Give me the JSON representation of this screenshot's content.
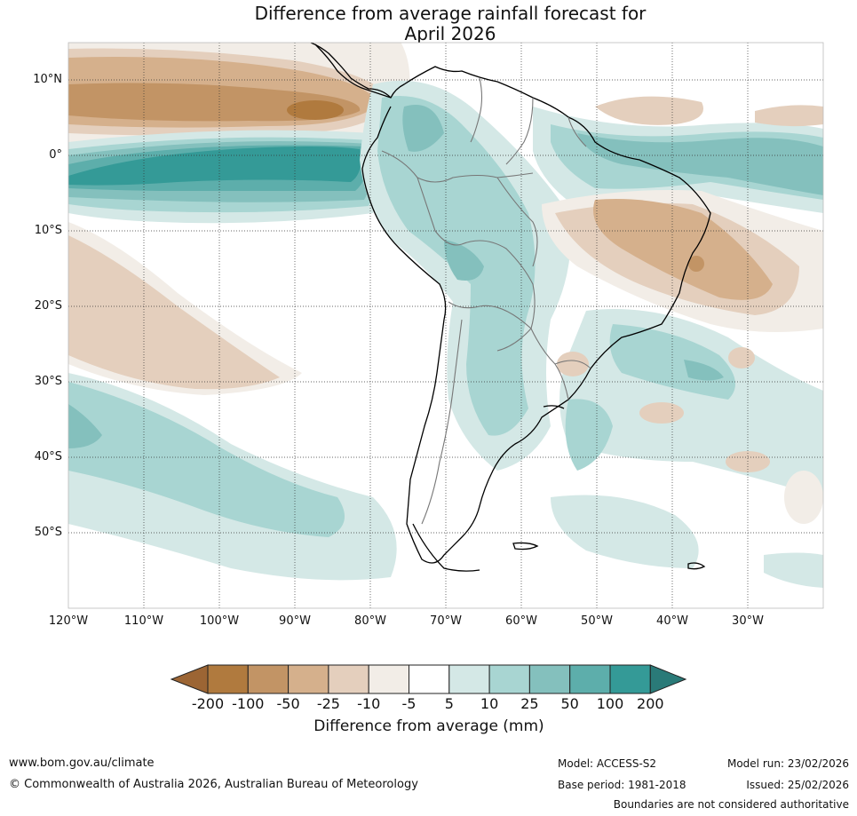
{
  "title": {
    "line1": "Difference from average rainfall forecast for",
    "line2": "April 2026"
  },
  "map": {
    "lat_labels": [
      "10°N",
      "0°",
      "10°S",
      "20°S",
      "30°S",
      "40°S",
      "50°S"
    ],
    "lon_labels": [
      "120°W",
      "110°W",
      "100°W",
      "90°W",
      "80°W",
      "70°W",
      "60°W",
      "50°W",
      "40°W",
      "30°W"
    ]
  },
  "colorbar": {
    "ticks": [
      "-200",
      "-100",
      "-50",
      "-25",
      "-10",
      "-5",
      "5",
      "10",
      "25",
      "50",
      "100",
      "200"
    ],
    "colors": {
      "under": "#9c6534",
      "bins": [
        "#b07a3e",
        "#c29465",
        "#d5b08c",
        "#e4cfbd",
        "#f2ede7",
        "#ffffff",
        "#d4e8e6",
        "#a8d5d2",
        "#84c0bd",
        "#5daeab",
        "#349a97"
      ],
      "over": "#2a7a78"
    },
    "label": "Difference from average (mm)"
  },
  "footer": {
    "url": "www.bom.gov.au/climate",
    "copyright": "© Commonwealth of Australia 2026, Australian Bureau of Meteorology",
    "model": "Model: ACCESS-S2",
    "base_period": "Base period: 1981-2018",
    "model_run": "Model run: 23/02/2026",
    "issued": "Issued: 25/02/2026",
    "disclaimer": "Boundaries are not considered authoritative"
  }
}
